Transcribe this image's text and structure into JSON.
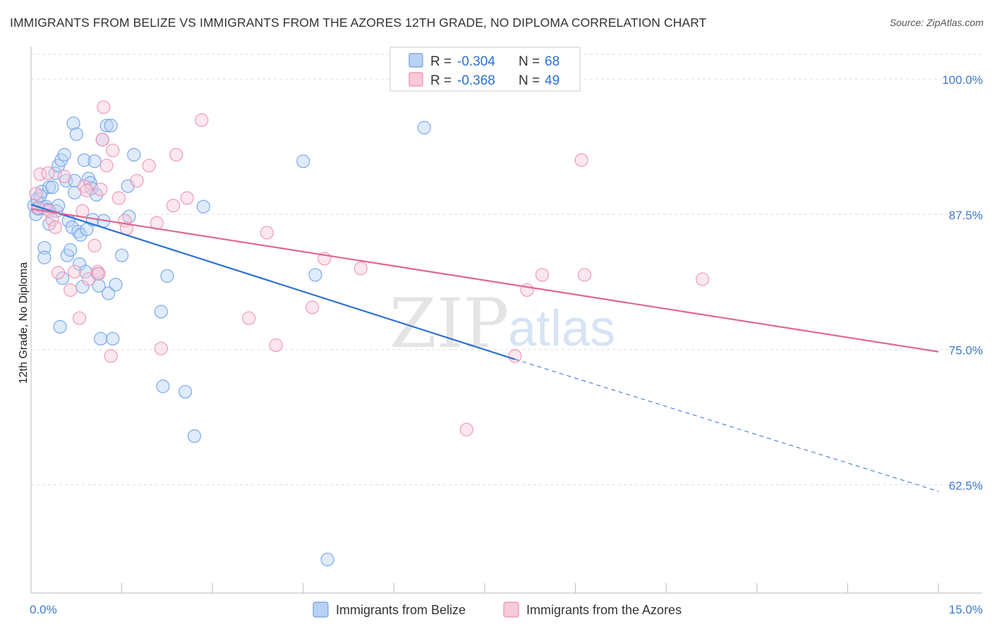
{
  "title": "IMMIGRANTS FROM BELIZE VS IMMIGRANTS FROM THE AZORES 12TH GRADE, NO DIPLOMA CORRELATION CHART",
  "source": "Source: ZipAtlas.com",
  "watermark": {
    "zip": "ZIP",
    "atlas": "atlas"
  },
  "colors": {
    "belize": "#6ea1e8",
    "belize_fill": "#b9d2f3",
    "belize_line": "#2a6fd1",
    "azores": "#ee8fb0",
    "azores_fill": "#f8c9d9",
    "azores_line": "#e06591",
    "grid": "#dddddd",
    "tick_text": "#3e79c9"
  },
  "legend": {
    "rows": [
      {
        "r_label": "R = ",
        "r_value": "-0.304",
        "n_label": "N = ",
        "n_value": "68"
      },
      {
        "r_label": "R = ",
        "r_value": "-0.368",
        "n_label": "N = ",
        "n_value": "49"
      }
    ]
  },
  "chart_data": {
    "type": "scatter",
    "title": "IMMIGRANTS FROM BELIZE VS IMMIGRANTS FROM THE AZORES 12TH GRADE, NO DIPLOMA CORRELATION CHART",
    "xlabel": "",
    "ylabel": "12th Grade, No Diploma",
    "xlim": [
      0,
      15
    ],
    "ylim": [
      52.5,
      103
    ],
    "x_tick_labels": [
      "0.0%",
      "15.0%"
    ],
    "y_ticks": [
      100,
      87.5,
      75,
      62.5
    ],
    "y_tick_labels": [
      "100.0%",
      "87.5%",
      "75.0%",
      "62.5%"
    ],
    "grid": true,
    "legend_position": "top-center",
    "series": [
      {
        "name": "Immigrants from Belize",
        "color": "#6ea1e8",
        "points": [
          [
            0.05,
            88.3
          ],
          [
            0.08,
            87.5
          ],
          [
            0.1,
            88.9
          ],
          [
            0.12,
            88.0
          ],
          [
            0.15,
            89.2
          ],
          [
            0.18,
            89.6
          ],
          [
            0.2,
            88.1
          ],
          [
            0.22,
            84.4
          ],
          [
            0.22,
            83.5
          ],
          [
            0.25,
            88.2
          ],
          [
            0.28,
            87.9
          ],
          [
            0.3,
            86.6
          ],
          [
            0.3,
            90.0
          ],
          [
            0.35,
            90.0
          ],
          [
            0.4,
            91.3
          ],
          [
            0.42,
            87.8
          ],
          [
            0.45,
            92.0
          ],
          [
            0.45,
            88.3
          ],
          [
            0.48,
            77.1
          ],
          [
            0.5,
            92.5
          ],
          [
            0.52,
            81.6
          ],
          [
            0.55,
            93.0
          ],
          [
            0.58,
            90.6
          ],
          [
            0.6,
            83.7
          ],
          [
            0.62,
            86.9
          ],
          [
            0.65,
            84.2
          ],
          [
            0.68,
            86.3
          ],
          [
            0.7,
            95.9
          ],
          [
            0.72,
            90.6
          ],
          [
            0.72,
            89.5
          ],
          [
            0.75,
            94.9
          ],
          [
            0.78,
            85.9
          ],
          [
            0.8,
            82.9
          ],
          [
            0.82,
            85.6
          ],
          [
            0.85,
            80.8
          ],
          [
            0.88,
            92.5
          ],
          [
            0.9,
            82.2
          ],
          [
            0.92,
            86.1
          ],
          [
            0.95,
            90.8
          ],
          [
            0.98,
            90.4
          ],
          [
            1.0,
            89.9
          ],
          [
            1.02,
            87.0
          ],
          [
            1.05,
            92.4
          ],
          [
            1.08,
            89.3
          ],
          [
            1.1,
            82.0
          ],
          [
            1.12,
            80.9
          ],
          [
            1.15,
            76.0
          ],
          [
            1.18,
            94.4
          ],
          [
            1.2,
            86.9
          ],
          [
            1.25,
            95.7
          ],
          [
            1.28,
            80.2
          ],
          [
            1.32,
            95.7
          ],
          [
            1.35,
            76.0
          ],
          [
            1.4,
            81.0
          ],
          [
            1.5,
            83.7
          ],
          [
            1.6,
            90.1
          ],
          [
            1.62,
            87.3
          ],
          [
            1.7,
            93.0
          ],
          [
            2.15,
            78.5
          ],
          [
            2.18,
            71.6
          ],
          [
            2.25,
            81.8
          ],
          [
            2.55,
            71.1
          ],
          [
            2.7,
            67.0
          ],
          [
            2.85,
            88.2
          ],
          [
            4.5,
            92.4
          ],
          [
            4.7,
            81.9
          ],
          [
            4.9,
            55.6
          ],
          [
            6.5,
            95.5
          ]
        ]
      },
      {
        "name": "Immigrants from the Azores",
        "color": "#ee8fb0",
        "points": [
          [
            0.08,
            89.4
          ],
          [
            0.12,
            88.1
          ],
          [
            0.15,
            91.2
          ],
          [
            0.28,
            91.3
          ],
          [
            0.3,
            87.8
          ],
          [
            0.35,
            87.0
          ],
          [
            0.4,
            86.3
          ],
          [
            0.45,
            82.1
          ],
          [
            0.55,
            91.0
          ],
          [
            0.65,
            80.5
          ],
          [
            0.72,
            82.2
          ],
          [
            0.8,
            77.9
          ],
          [
            0.85,
            87.8
          ],
          [
            0.88,
            90.1
          ],
          [
            0.92,
            89.7
          ],
          [
            0.95,
            81.5
          ],
          [
            1.05,
            84.6
          ],
          [
            1.1,
            82.2
          ],
          [
            1.12,
            82.0
          ],
          [
            1.15,
            89.8
          ],
          [
            1.18,
            94.4
          ],
          [
            1.2,
            97.4
          ],
          [
            1.25,
            92.0
          ],
          [
            1.32,
            74.4
          ],
          [
            1.35,
            93.4
          ],
          [
            1.45,
            89.0
          ],
          [
            1.55,
            86.9
          ],
          [
            1.58,
            86.2
          ],
          [
            1.75,
            90.6
          ],
          [
            1.95,
            92.0
          ],
          [
            2.08,
            86.7
          ],
          [
            2.15,
            75.1
          ],
          [
            2.35,
            88.3
          ],
          [
            2.4,
            93.0
          ],
          [
            2.58,
            89.0
          ],
          [
            2.82,
            96.2
          ],
          [
            3.6,
            77.9
          ],
          [
            3.9,
            85.8
          ],
          [
            4.05,
            75.4
          ],
          [
            4.65,
            78.9
          ],
          [
            4.85,
            83.4
          ],
          [
            5.45,
            82.5
          ],
          [
            8.0,
            74.4
          ],
          [
            7.2,
            67.6
          ],
          [
            8.2,
            80.5
          ],
          [
            8.45,
            81.9
          ],
          [
            9.1,
            92.5
          ],
          [
            9.15,
            81.9
          ],
          [
            11.1,
            81.5
          ]
        ]
      }
    ],
    "trend_lines": [
      {
        "series": "Immigrants from Belize",
        "x_start": 0,
        "y_start": 88.4,
        "x_end": 8.0,
        "y_end": 74.1,
        "dashed_to_x": 15.0,
        "dashed_to_y": 61.9
      },
      {
        "series": "Immigrants from the Azores",
        "x_start": 0,
        "y_start": 88.0,
        "x_end": 15.0,
        "y_end": 74.8
      }
    ]
  },
  "bottom_legend": [
    "Immigrants from Belize",
    "Immigrants from the Azores"
  ]
}
